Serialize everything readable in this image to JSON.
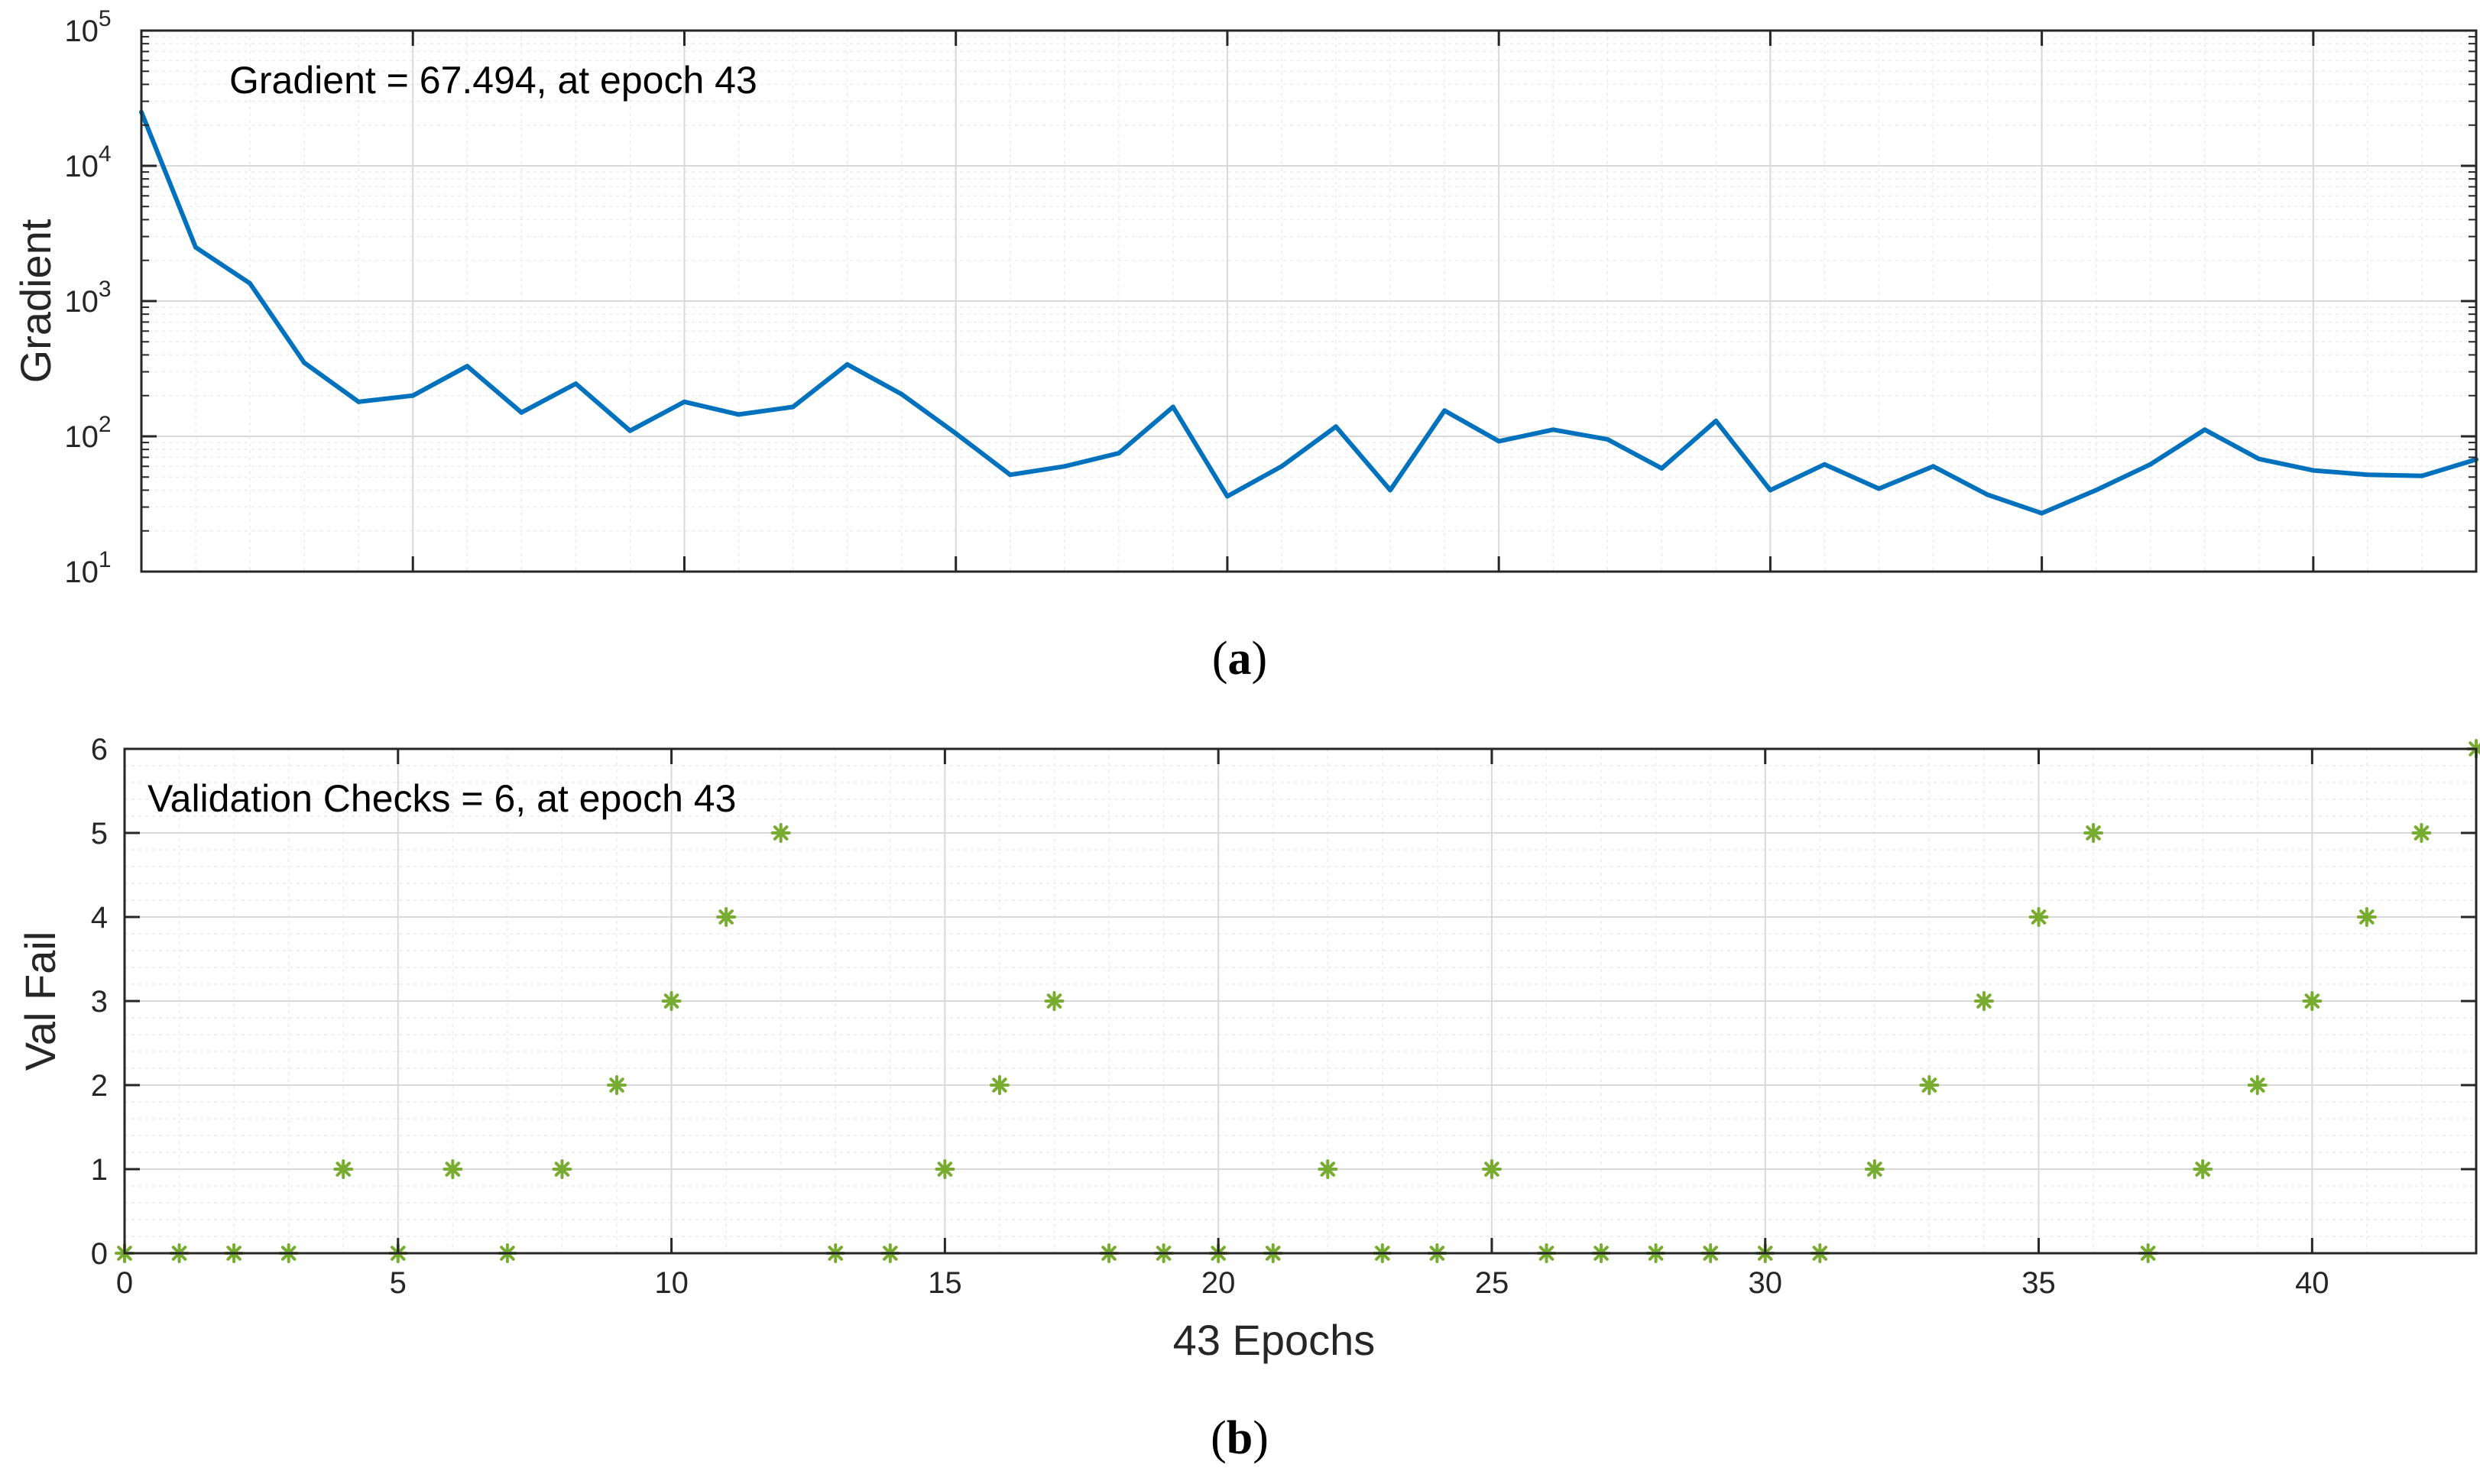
{
  "colors": {
    "gradient_line": "#0072BD",
    "val_marker": "#77AC30",
    "grid_major": "#d9d9d9",
    "grid_minor": "#ececec",
    "axis": "#262626"
  },
  "chart_data": [
    {
      "id": "a",
      "type": "line",
      "caption": "a",
      "annotation": "Gradient = 67.494, at epoch 43",
      "ylabel": "Gradient",
      "xlabel": "",
      "yscale": "log",
      "ylim": [
        10,
        100000
      ],
      "xlim": [
        0,
        43
      ],
      "ytick_bases": [
        "10",
        "10",
        "10",
        "10",
        "10"
      ],
      "ytick_exponents": [
        "1",
        "2",
        "3",
        "4",
        "5"
      ],
      "series": [
        {
          "name": "Gradient",
          "x": [
            0,
            1,
            2,
            3,
            4,
            5,
            6,
            7,
            8,
            9,
            10,
            11,
            12,
            13,
            14,
            15,
            16,
            17,
            18,
            19,
            20,
            21,
            22,
            23,
            24,
            25,
            26,
            27,
            28,
            29,
            30,
            31,
            32,
            33,
            34,
            35,
            36,
            37,
            38,
            39,
            40,
            41,
            42,
            43
          ],
          "values": [
            25000,
            2500,
            1350,
            350,
            180,
            200,
            330,
            150,
            245,
            110,
            180,
            145,
            165,
            340,
            205,
            105,
            52,
            60,
            75,
            165,
            36,
            60,
            118,
            40,
            155,
            92,
            112,
            95,
            58,
            130,
            40,
            62,
            41,
            60,
            37,
            27,
            40,
            62,
            112,
            68,
            56,
            52,
            51,
            67.494
          ]
        }
      ]
    },
    {
      "id": "b",
      "type": "scatter",
      "caption": "b",
      "annotation": "Validation Checks = 6, at epoch 43",
      "ylabel": "Val Fail",
      "xlabel": "43 Epochs",
      "ylim": [
        0,
        6
      ],
      "xlim": [
        0,
        43
      ],
      "xticks": [
        "0",
        "5",
        "10",
        "15",
        "20",
        "25",
        "30",
        "35",
        "40"
      ],
      "yticks": [
        "0",
        "1",
        "2",
        "3",
        "4",
        "5",
        "6"
      ],
      "marker": "*",
      "series": [
        {
          "name": "Val Fail",
          "x": [
            0,
            1,
            2,
            3,
            4,
            5,
            6,
            7,
            8,
            9,
            10,
            11,
            12,
            13,
            14,
            15,
            16,
            17,
            18,
            19,
            20,
            21,
            22,
            23,
            24,
            25,
            26,
            27,
            28,
            29,
            30,
            31,
            32,
            33,
            34,
            35,
            36,
            37,
            38,
            39,
            40,
            41,
            42,
            43
          ],
          "values": [
            0,
            0,
            0,
            0,
            1,
            0,
            1,
            0,
            1,
            2,
            3,
            4,
            5,
            0,
            0,
            1,
            2,
            3,
            0,
            0,
            0,
            0,
            1,
            0,
            0,
            1,
            0,
            0,
            0,
            0,
            0,
            0,
            1,
            2,
            3,
            4,
            5,
            0,
            1,
            2,
            3,
            4,
            5,
            6
          ]
        }
      ]
    }
  ]
}
